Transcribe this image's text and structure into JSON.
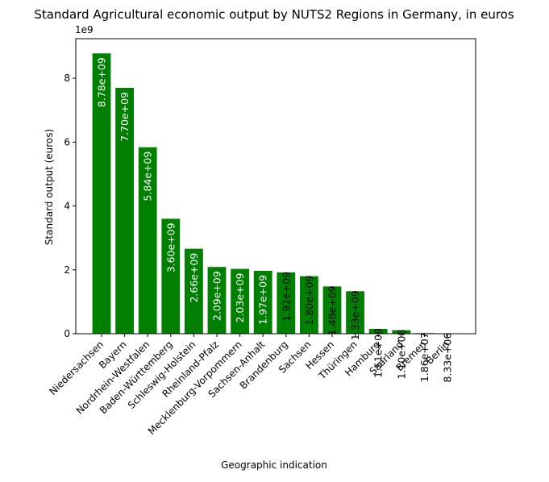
{
  "chart_data": {
    "type": "bar",
    "title": "Standard Agricultural economic output by NUTS2 Regions in Germany, in euros",
    "xlabel": "Geographic indication",
    "ylabel": "Standard output (euros)",
    "y_offset_label": "1e9",
    "ylim": [
      0,
      9240000000
    ],
    "yticks": [
      0,
      2,
      4,
      6,
      8
    ],
    "grid": false,
    "bar_color": "#008000",
    "categories": [
      "Niedersachsen",
      "Bayern",
      "Nordrhein-Westfalen",
      "Baden-Württemberg",
      "Schleswig-Holstein",
      "Rheinland-Pfalz",
      "Mecklenburg-Vorpommern",
      "Sachsen-Anhalt",
      "Brandenburg",
      "Sachsen",
      "Hessen",
      "Thüringen",
      "Hamburg",
      "Saarland",
      "Bremen",
      "Berlin"
    ],
    "values": [
      8780000000,
      7700000000,
      5840000000,
      3600000000,
      2660000000,
      2090000000,
      2030000000,
      1970000000,
      1920000000,
      1800000000,
      1480000000,
      1330000000,
      151000000,
      110000000,
      18600000,
      8330000
    ],
    "data_labels": [
      "8.78e+09",
      "7.70e+09",
      "5.84e+09",
      "3.60e+09",
      "2.66e+09",
      "2.09e+09",
      "2.03e+09",
      "1.97e+09",
      "1.92e+09",
      "1.80e+09",
      "1.48e+09",
      "1.33e+09",
      "1.51e+08",
      "1.10e+08",
      "1.86e+07",
      "8.33e+06"
    ],
    "label_inside": [
      true,
      true,
      true,
      true,
      true,
      true,
      true,
      true,
      false,
      false,
      false,
      false,
      false,
      false,
      false,
      false
    ]
  }
}
